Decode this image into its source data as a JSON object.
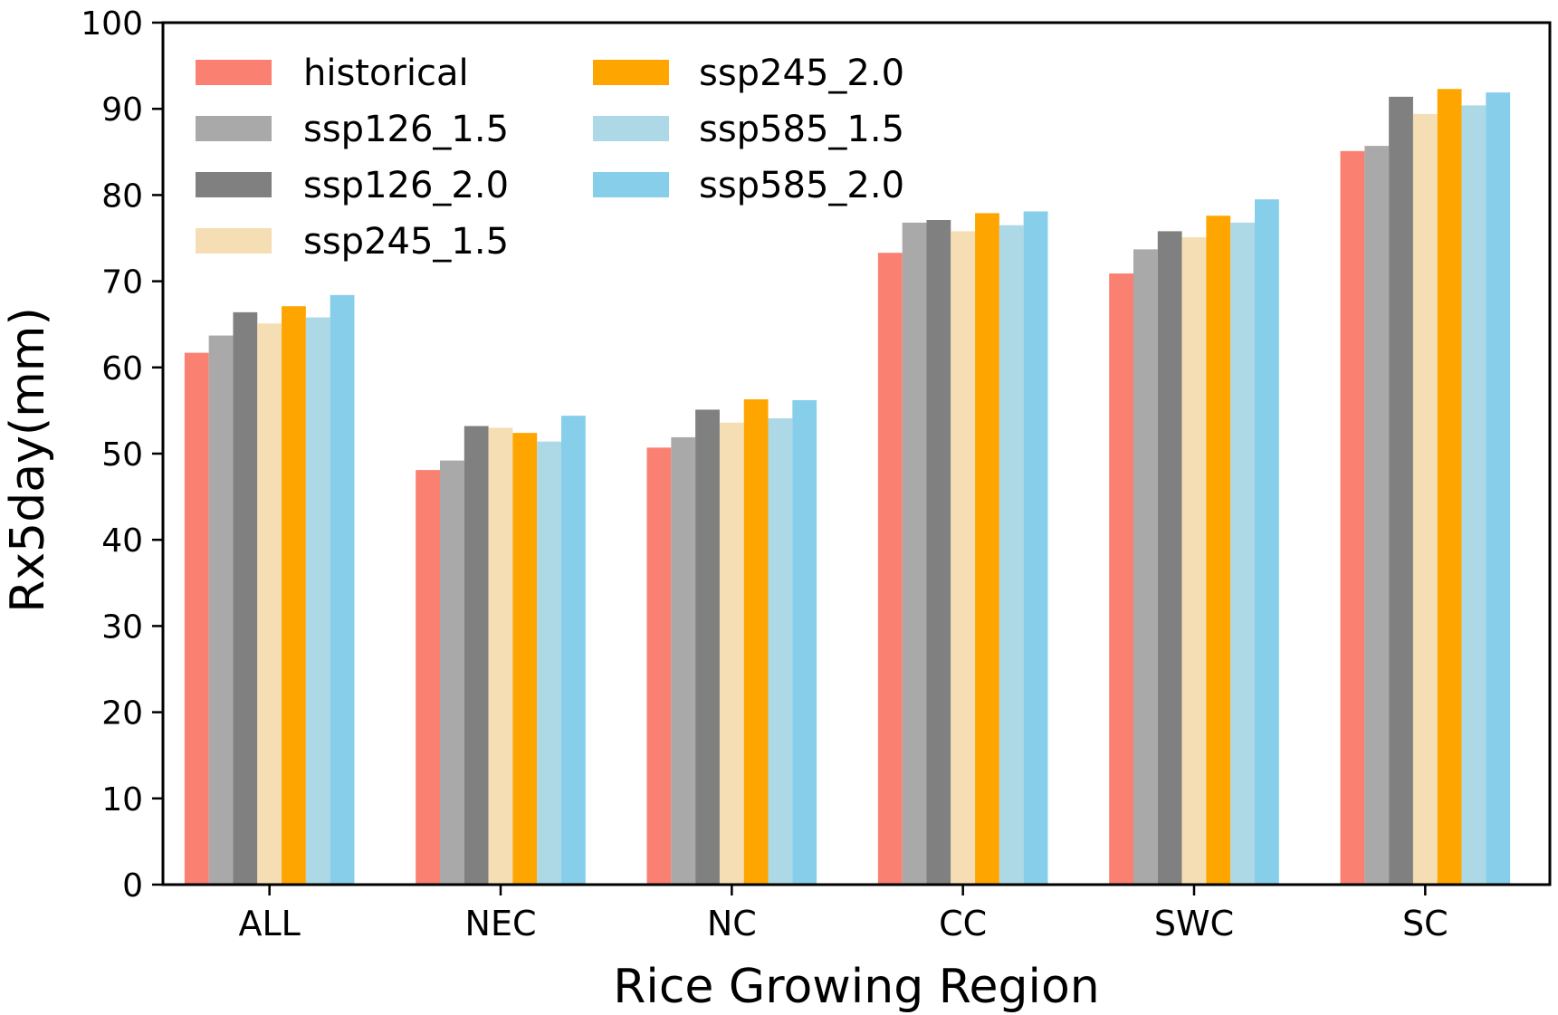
{
  "chart_data": {
    "type": "bar",
    "title": "",
    "xlabel": "Rice Growing Region",
    "ylabel": "Rx5day(mm)",
    "ylim": [
      0,
      100
    ],
    "yticks": [
      0,
      10,
      20,
      30,
      40,
      50,
      60,
      70,
      80,
      90,
      100
    ],
    "grid": false,
    "legend_position": "top-left",
    "categories": [
      "ALL",
      "NEC",
      "NC",
      "CC",
      "SWC",
      "SC"
    ],
    "series": [
      {
        "name": "historical",
        "color": "#FA8072",
        "values": [
          61.7,
          48.1,
          50.7,
          73.3,
          70.9,
          85.1
        ]
      },
      {
        "name": "ssp126_1.5",
        "color": "#A9A9A9",
        "values": [
          63.7,
          49.2,
          51.9,
          76.8,
          73.7,
          85.7
        ]
      },
      {
        "name": "ssp126_2.0",
        "color": "#808080",
        "values": [
          66.4,
          53.2,
          55.1,
          77.1,
          75.8,
          91.4
        ]
      },
      {
        "name": "ssp245_1.5",
        "color": "#F5DEB3",
        "values": [
          65.1,
          53.0,
          53.6,
          75.8,
          75.1,
          89.4
        ]
      },
      {
        "name": "ssp245_2.0",
        "color": "#FFA500",
        "values": [
          67.1,
          52.4,
          56.3,
          77.9,
          77.6,
          92.3
        ]
      },
      {
        "name": "ssp585_1.5",
        "color": "#ADD8E6",
        "values": [
          65.8,
          51.4,
          54.1,
          76.5,
          76.8,
          90.4
        ]
      },
      {
        "name": "ssp585_2.0",
        "color": "#87CEEB",
        "values": [
          68.4,
          54.4,
          56.2,
          78.1,
          79.5,
          91.9
        ]
      }
    ]
  }
}
